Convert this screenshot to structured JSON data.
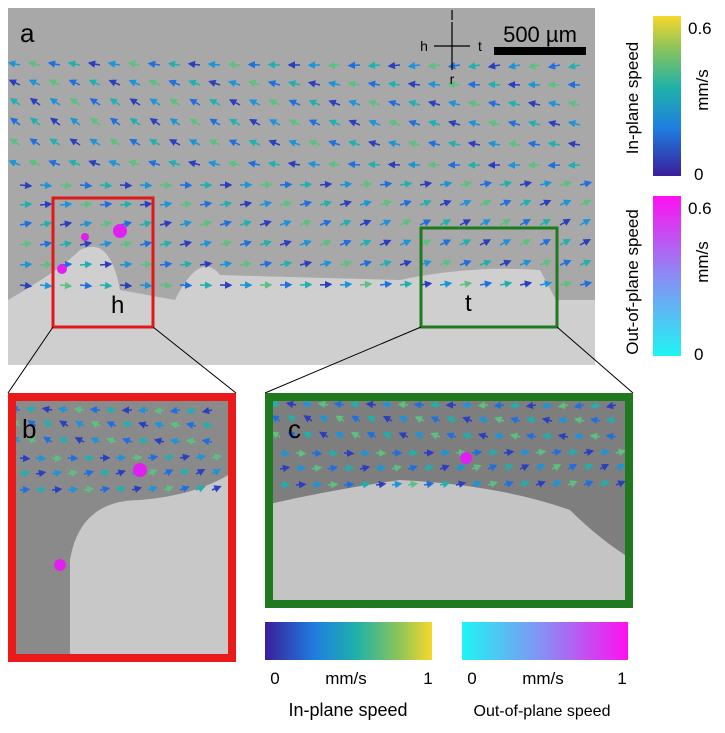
{
  "panels": {
    "a": {
      "label": "a",
      "roi_labels": [
        "h",
        "t"
      ]
    },
    "b": {
      "label": "b"
    },
    "c": {
      "label": "c"
    }
  },
  "orientation": [
    "l",
    "h",
    "t",
    "r"
  ],
  "scale_bar": "500 µm",
  "colorbars_vertical": [
    {
      "title": "In-plane speed",
      "unit": "mm/s",
      "ticks": [
        "0.6",
        "0"
      ]
    },
    {
      "title": "Out-of-plane speed",
      "unit": "mm/s",
      "ticks": [
        "0.6",
        "0"
      ]
    }
  ],
  "colorbars_horizontal": [
    {
      "title": "In-plane speed",
      "unit": "mm/s",
      "ticks": [
        "0",
        "1"
      ]
    },
    {
      "title": "Out-of-plane speed",
      "unit": "mm/s",
      "ticks": [
        "0",
        "1"
      ]
    }
  ]
}
